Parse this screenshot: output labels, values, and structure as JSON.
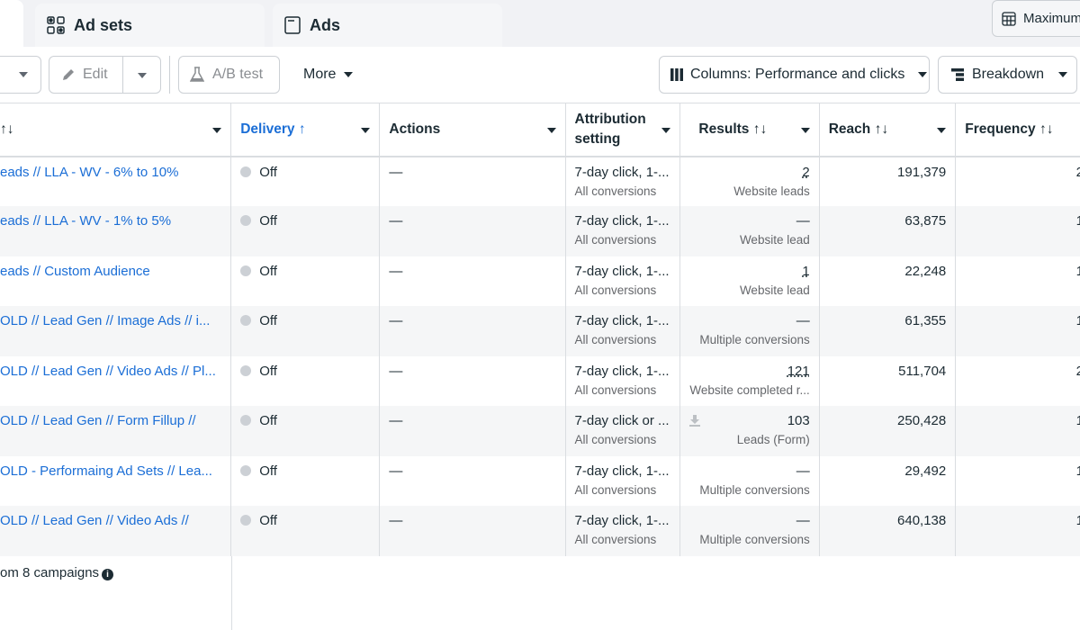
{
  "tabs": {
    "ad_sets": "Ad sets",
    "ads": "Ads",
    "maximum": "Maximum"
  },
  "toolbar": {
    "edit": "Edit",
    "ab_test": "A/B test",
    "more": "More",
    "columns": "Columns: Performance and clicks",
    "breakdown": "Breakdown"
  },
  "columns": {
    "name": "↑↓",
    "delivery": "Delivery ↑",
    "actions": "Actions",
    "attribution": "Attribution setting",
    "results": "Results ↑↓",
    "reach": "Reach ↑↓",
    "frequency": "Frequency ↑↓"
  },
  "rows": [
    {
      "name": "eads // LLA - WV - 6% to 10%",
      "delivery": "Off",
      "actions": "—",
      "attribution": "7-day click, 1-...",
      "attribution_sub": "All conversions",
      "results": "2",
      "results_sub": "Website leads",
      "reach": "191,379",
      "frequency": "2"
    },
    {
      "name": "eads // LLA - WV - 1% to 5%",
      "delivery": "Off",
      "actions": "—",
      "attribution": "7-day click, 1-...",
      "attribution_sub": "All conversions",
      "results": "—",
      "results_sub": "Website lead",
      "reach": "63,875",
      "frequency": "1"
    },
    {
      "name": "eads // Custom Audience",
      "delivery": "Off",
      "actions": "—",
      "attribution": "7-day click, 1-...",
      "attribution_sub": "All conversions",
      "results": "1",
      "results_sub": "Website lead",
      "reach": "22,248",
      "frequency": "1"
    },
    {
      "name": "OLD // Lead Gen // Image Ads // i...",
      "delivery": "Off",
      "actions": "—",
      "attribution": "7-day click, 1-...",
      "attribution_sub": "All conversions",
      "results": "—",
      "results_sub": "Multiple conversions",
      "reach": "61,355",
      "frequency": "1"
    },
    {
      "name": "OLD // Lead Gen // Video Ads // Pl...",
      "delivery": "Off",
      "actions": "—",
      "attribution": "7-day click, 1-...",
      "attribution_sub": "All conversions",
      "results": "121",
      "results_sub": "Website completed r...",
      "reach": "511,704",
      "frequency": "2"
    },
    {
      "name": "OLD // Lead Gen // Form Fillup //",
      "delivery": "Off",
      "actions": "—",
      "attribution": "7-day click or ...",
      "attribution_sub": "All conversions",
      "results": "103",
      "results_sub": "Leads (Form)",
      "reach": "250,428",
      "frequency": "1"
    },
    {
      "name": "OLD - Performaing Ad Sets // Lea...",
      "delivery": "Off",
      "actions": "—",
      "attribution": "7-day click, 1-...",
      "attribution_sub": "All conversions",
      "results": "—",
      "results_sub": "Multiple conversions",
      "reach": "29,492",
      "frequency": "1"
    },
    {
      "name": "OLD // Lead Gen // Video Ads //",
      "delivery": "Off",
      "actions": "—",
      "attribution": "7-day click, 1-...",
      "attribution_sub": "All conversions",
      "results": "—",
      "results_sub": "Multiple conversions",
      "reach": "640,138",
      "frequency": "1"
    }
  ],
  "footer": "om 8 campaigns",
  "colors": {
    "link": "#1b6ed6",
    "row_alt": "#f5f6f7"
  }
}
